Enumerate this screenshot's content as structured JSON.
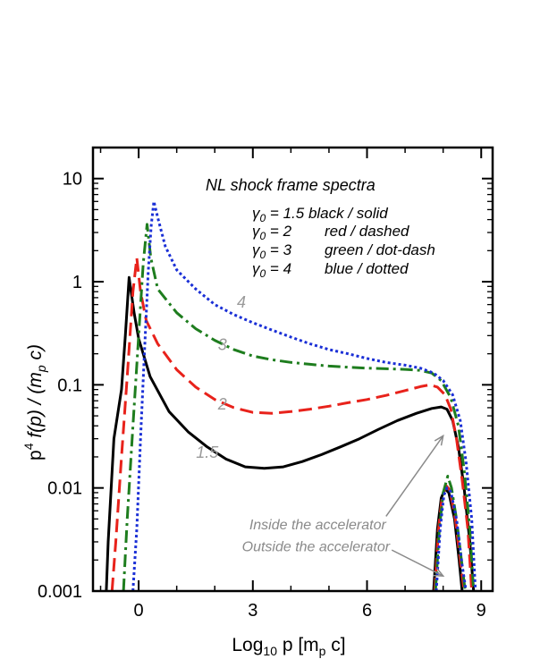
{
  "chart_data": {
    "type": "line",
    "title": "NL shock frame spectra",
    "xlabel": "Log10 p [mp c]",
    "ylabel": "p4 f(p) / (mp c)",
    "xlim": [
      -1.2,
      9.3
    ],
    "ylim": [
      0.001,
      20
    ],
    "yscale": "log",
    "x_ticks": [
      {
        "value": 0,
        "label": "0"
      },
      {
        "value": 3,
        "label": "3"
      },
      {
        "value": 6,
        "label": "6"
      },
      {
        "value": 9,
        "label": "9"
      }
    ],
    "y_ticks": [
      {
        "value": 0.001,
        "label": "0.001"
      },
      {
        "value": 0.01,
        "label": "0.01"
      },
      {
        "value": 0.1,
        "label": "0.1"
      },
      {
        "value": 1,
        "label": "1"
      },
      {
        "value": 10,
        "label": "10"
      }
    ],
    "legend_lines": [
      {
        "gamma": "1.5",
        "text": "black / solid"
      },
      {
        "gamma": "2",
        "text": "red / dashed"
      },
      {
        "gamma": "3",
        "text": "green / dot-dash"
      },
      {
        "gamma": "4",
        "text": "blue / dotted"
      }
    ],
    "series": [
      {
        "curve_label": "1.5",
        "color": "#000000",
        "dash": "",
        "label_at": [
          1.8,
          0.022
        ],
        "inside": [
          [
            -0.85,
            0.001
          ],
          [
            -0.8,
            0.003
          ],
          [
            -0.65,
            0.03
          ],
          [
            -0.45,
            0.09
          ],
          [
            -0.35,
            0.3
          ],
          [
            -0.25,
            1.1
          ],
          [
            -0.12,
            0.5
          ],
          [
            0.0,
            0.28
          ],
          [
            0.3,
            0.12
          ],
          [
            0.8,
            0.055
          ],
          [
            1.3,
            0.035
          ],
          [
            1.8,
            0.025
          ],
          [
            2.3,
            0.019
          ],
          [
            2.8,
            0.016
          ],
          [
            3.3,
            0.0155
          ],
          [
            3.8,
            0.016
          ],
          [
            4.3,
            0.018
          ],
          [
            4.8,
            0.021
          ],
          [
            5.3,
            0.025
          ],
          [
            5.8,
            0.03
          ],
          [
            6.3,
            0.037
          ],
          [
            6.8,
            0.045
          ],
          [
            7.3,
            0.053
          ],
          [
            7.7,
            0.059
          ],
          [
            7.95,
            0.061
          ],
          [
            8.1,
            0.058
          ],
          [
            8.25,
            0.045
          ],
          [
            8.4,
            0.025
          ],
          [
            8.55,
            0.01
          ],
          [
            8.7,
            0.003
          ],
          [
            8.8,
            0.001
          ]
        ],
        "outside": [
          [
            7.75,
            0.001
          ],
          [
            7.85,
            0.004
          ],
          [
            7.95,
            0.008
          ],
          [
            8.05,
            0.0098
          ],
          [
            8.15,
            0.009
          ],
          [
            8.3,
            0.005
          ],
          [
            8.42,
            0.002
          ],
          [
            8.5,
            0.001
          ]
        ]
      },
      {
        "curve_label": "2",
        "color": "#e8221b",
        "dash": "15,7",
        "label_at": [
          2.2,
          0.065
        ],
        "inside": [
          [
            -0.7,
            0.001
          ],
          [
            -0.6,
            0.003
          ],
          [
            -0.45,
            0.02
          ],
          [
            -0.3,
            0.12
          ],
          [
            -0.15,
            0.8
          ],
          [
            -0.05,
            1.7
          ],
          [
            0.05,
            0.8
          ],
          [
            0.2,
            0.42
          ],
          [
            0.5,
            0.25
          ],
          [
            1.0,
            0.14
          ],
          [
            1.5,
            0.095
          ],
          [
            2.0,
            0.072
          ],
          [
            2.5,
            0.06
          ],
          [
            3.0,
            0.054
          ],
          [
            3.5,
            0.053
          ],
          [
            4.0,
            0.055
          ],
          [
            4.5,
            0.058
          ],
          [
            5.0,
            0.062
          ],
          [
            5.5,
            0.067
          ],
          [
            6.0,
            0.072
          ],
          [
            6.5,
            0.079
          ],
          [
            7.0,
            0.088
          ],
          [
            7.4,
            0.096
          ],
          [
            7.65,
            0.1
          ],
          [
            7.85,
            0.095
          ],
          [
            8.05,
            0.08
          ],
          [
            8.2,
            0.058
          ],
          [
            8.35,
            0.03
          ],
          [
            8.5,
            0.012
          ],
          [
            8.65,
            0.004
          ],
          [
            8.75,
            0.001
          ]
        ],
        "outside": [
          [
            7.78,
            0.001
          ],
          [
            7.88,
            0.004
          ],
          [
            7.98,
            0.0085
          ],
          [
            8.08,
            0.0105
          ],
          [
            8.18,
            0.0095
          ],
          [
            8.32,
            0.005
          ],
          [
            8.45,
            0.002
          ],
          [
            8.55,
            0.001
          ]
        ]
      },
      {
        "curve_label": "3",
        "color": "#1e7d1e",
        "dash": "14,5,3,5",
        "label_at": [
          2.2,
          0.245
        ],
        "inside": [
          [
            -0.4,
            0.001
          ],
          [
            -0.3,
            0.005
          ],
          [
            -0.15,
            0.04
          ],
          [
            0.0,
            0.3
          ],
          [
            0.12,
            1.5
          ],
          [
            0.22,
            3.6
          ],
          [
            0.32,
            1.7
          ],
          [
            0.5,
            0.85
          ],
          [
            1.0,
            0.5
          ],
          [
            1.5,
            0.35
          ],
          [
            2.0,
            0.27
          ],
          [
            2.5,
            0.22
          ],
          [
            3.0,
            0.19
          ],
          [
            3.5,
            0.175
          ],
          [
            4.0,
            0.165
          ],
          [
            4.5,
            0.158
          ],
          [
            5.0,
            0.152
          ],
          [
            5.5,
            0.148
          ],
          [
            6.0,
            0.145
          ],
          [
            6.5,
            0.143
          ],
          [
            7.0,
            0.141
          ],
          [
            7.4,
            0.138
          ],
          [
            7.7,
            0.13
          ],
          [
            7.95,
            0.11
          ],
          [
            8.2,
            0.075
          ],
          [
            8.4,
            0.04
          ],
          [
            8.55,
            0.015
          ],
          [
            8.7,
            0.004
          ],
          [
            8.8,
            0.001
          ]
        ],
        "outside": [
          [
            7.8,
            0.001
          ],
          [
            7.9,
            0.004
          ],
          [
            8.0,
            0.009
          ],
          [
            8.12,
            0.013
          ],
          [
            8.22,
            0.01
          ],
          [
            8.35,
            0.005
          ],
          [
            8.48,
            0.002
          ],
          [
            8.58,
            0.001
          ]
        ]
      },
      {
        "curve_label": "4",
        "color": "#1a2fd6",
        "dash": "3,3",
        "label_at": [
          2.7,
          0.63
        ],
        "inside": [
          [
            -0.15,
            0.001
          ],
          [
            -0.05,
            0.004
          ],
          [
            0.05,
            0.03
          ],
          [
            0.15,
            0.2
          ],
          [
            0.25,
            1.2
          ],
          [
            0.33,
            3.5
          ],
          [
            0.4,
            6.0
          ],
          [
            0.5,
            4.2
          ],
          [
            0.7,
            2.2
          ],
          [
            1.0,
            1.3
          ],
          [
            1.5,
            0.85
          ],
          [
            2.0,
            0.6
          ],
          [
            2.5,
            0.48
          ],
          [
            3.0,
            0.4
          ],
          [
            3.5,
            0.34
          ],
          [
            4.0,
            0.29
          ],
          [
            4.5,
            0.25
          ],
          [
            5.0,
            0.22
          ],
          [
            5.5,
            0.2
          ],
          [
            6.0,
            0.18
          ],
          [
            6.5,
            0.165
          ],
          [
            7.0,
            0.155
          ],
          [
            7.4,
            0.145
          ],
          [
            7.75,
            0.13
          ],
          [
            8.0,
            0.11
          ],
          [
            8.25,
            0.08
          ],
          [
            8.45,
            0.045
          ],
          [
            8.6,
            0.018
          ],
          [
            8.75,
            0.005
          ],
          [
            8.85,
            0.001
          ]
        ],
        "outside": [
          [
            7.82,
            0.001
          ],
          [
            7.92,
            0.004
          ],
          [
            8.02,
            0.0085
          ],
          [
            8.1,
            0.01
          ],
          [
            8.2,
            0.0092
          ],
          [
            8.35,
            0.005
          ],
          [
            8.5,
            0.0018
          ],
          [
            8.6,
            0.001
          ]
        ]
      }
    ],
    "arrows": [
      {
        "text": "Inside the accelerator",
        "text_at": [
          6.5,
          0.0044
        ],
        "from": [
          6.5,
          0.0053
        ],
        "to": [
          8.0,
          0.032
        ]
      },
      {
        "text": "Outside the accelerator",
        "text_at": [
          6.6,
          0.0027
        ],
        "from": [
          6.65,
          0.0025
        ],
        "to": [
          8.0,
          0.0014
        ]
      }
    ]
  }
}
